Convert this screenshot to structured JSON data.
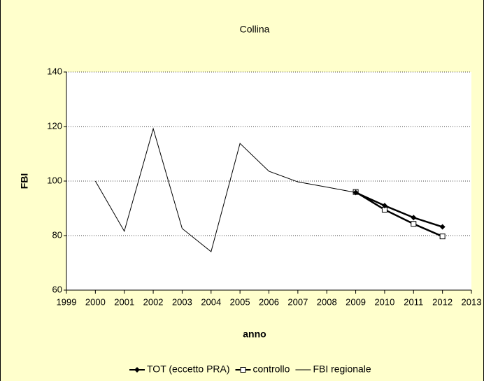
{
  "chart_data": {
    "type": "line",
    "title": "Collina",
    "x_label": "anno",
    "y_label": "FBI",
    "x": [
      2000,
      2001,
      2002,
      2003,
      2004,
      2005,
      2006,
      2007,
      2008,
      2009,
      2010,
      2011,
      2012
    ],
    "series": [
      {
        "name": "TOT (eccetto PRA)",
        "color": "#000000",
        "marker": "diamond",
        "values": [
          null,
          null,
          null,
          null,
          null,
          null,
          null,
          null,
          null,
          95.8,
          91,
          86.6,
          83.2
        ]
      },
      {
        "name": "controllo",
        "color": "#000000",
        "marker": "square",
        "values": [
          null,
          null,
          null,
          null,
          null,
          null,
          null,
          null,
          null,
          96,
          89.5,
          84.3,
          79.7
        ]
      },
      {
        "name": "FBI regionale",
        "color": "#000000",
        "marker": null,
        "values": [
          100,
          81.6,
          119.2,
          82.6,
          74.1,
          113.8,
          103.6,
          99.7,
          97.8,
          95.8,
          91,
          86.6,
          83.2
        ]
      }
    ],
    "xlim": [
      1999,
      2013
    ],
    "xticks": [
      1999,
      2000,
      2001,
      2002,
      2003,
      2004,
      2005,
      2006,
      2007,
      2008,
      2009,
      2010,
      2011,
      2012,
      2013
    ],
    "ylim": [
      60,
      140
    ],
    "yticks": [
      60,
      80,
      100,
      120,
      140
    ],
    "grid": true,
    "legend": "bottom"
  }
}
